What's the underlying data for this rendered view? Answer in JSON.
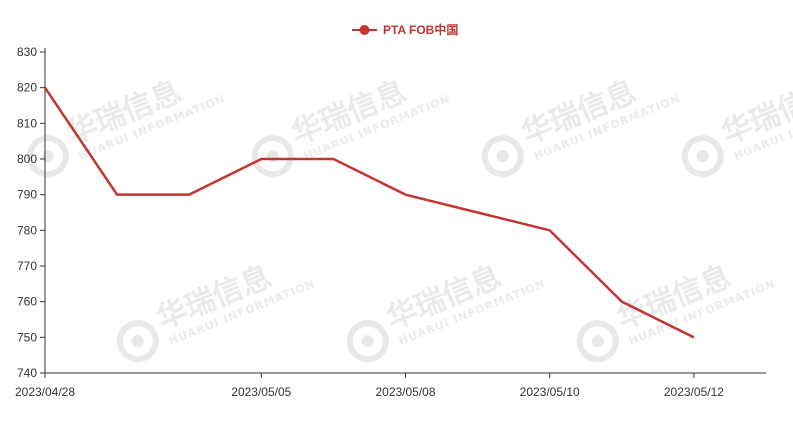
{
  "chart_data": {
    "type": "line",
    "title": "",
    "xlabel": "",
    "ylabel": "",
    "ylim": [
      740,
      830
    ],
    "ytick_step": 10,
    "x": [
      "2023/04/28",
      "",
      "",
      "2023/05/05",
      "",
      "2023/05/08",
      "",
      "2023/05/10",
      "",
      "2023/05/12"
    ],
    "xtick_labels_shown": [
      "2023/04/28",
      "2023/05/05",
      "2023/05/08",
      "2023/05/10",
      "2023/05/12"
    ],
    "series": [
      {
        "name": "PTA FOB中国",
        "color": "#c23531",
        "values": [
          820,
          790,
          790,
          800,
          800,
          790,
          785,
          780,
          760,
          750
        ]
      }
    ],
    "legend_position": "top-center",
    "grid": false
  },
  "watermark": {
    "brand_cn": "华瑞信息",
    "brand_en": "HUARUI INFORMATION"
  }
}
